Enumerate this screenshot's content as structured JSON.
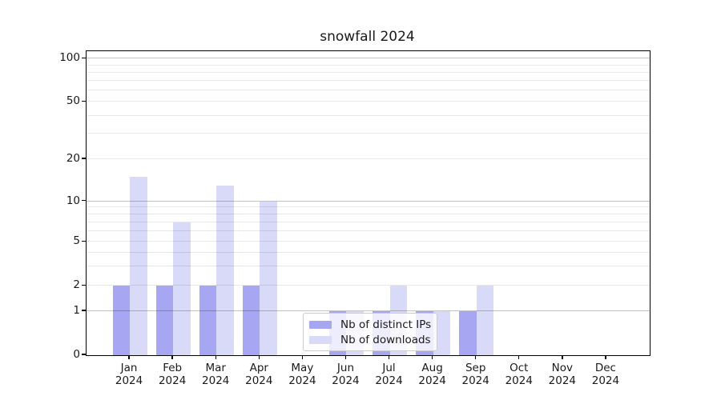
{
  "chart_data": {
    "type": "bar",
    "title": "snowfall 2024",
    "x_categories": [
      {
        "month": "Jan",
        "year": "2024"
      },
      {
        "month": "Feb",
        "year": "2024"
      },
      {
        "month": "Mar",
        "year": "2024"
      },
      {
        "month": "Apr",
        "year": "2024"
      },
      {
        "month": "May",
        "year": "2024"
      },
      {
        "month": "Jun",
        "year": "2024"
      },
      {
        "month": "Jul",
        "year": "2024"
      },
      {
        "month": "Aug",
        "year": "2024"
      },
      {
        "month": "Sep",
        "year": "2024"
      },
      {
        "month": "Oct",
        "year": "2024"
      },
      {
        "month": "Nov",
        "year": "2024"
      },
      {
        "month": "Dec",
        "year": "2024"
      }
    ],
    "series": [
      {
        "name": "Nb of distinct IPs",
        "color": "#a6a6f2",
        "values": [
          2,
          2,
          2,
          2,
          0,
          1,
          1,
          1,
          1,
          0,
          0,
          0
        ]
      },
      {
        "name": "Nb of downloads",
        "color": "#d9d9f8",
        "values": [
          15,
          7,
          13,
          10,
          0,
          1,
          2,
          1,
          2,
          0,
          0,
          0
        ]
      }
    ],
    "y_axis": {
      "ticks": [
        0,
        1,
        2,
        5,
        10,
        20,
        50,
        100
      ],
      "scale": "symlog-like (labeled 1-2-5 sequence)",
      "ylim": [
        0,
        113
      ],
      "major_gridlines": [
        1,
        10,
        100
      ],
      "minor_gridlines": [
        2,
        3,
        4,
        5,
        6,
        7,
        8,
        9,
        20,
        30,
        40,
        50,
        60,
        70,
        80,
        90
      ],
      "scale_anchors": [
        [
          0,
          0.0
        ],
        [
          1,
          0.1447
        ],
        [
          2,
          0.2279
        ],
        [
          5,
          0.3726
        ],
        [
          10,
          0.5061
        ],
        [
          20,
          0.6447
        ],
        [
          50,
          0.8332
        ],
        [
          100,
          0.9753
        ]
      ]
    },
    "legend": {
      "position": "lower-center-inside"
    },
    "grid": true
  },
  "colors": {
    "background": "#ffffff",
    "axis": "#000000",
    "text": "#1a1a1a",
    "bar_distinct_ips": "#a6a6f2",
    "bar_downloads": "#d9d9f8",
    "grid_major": "#c3c3c3",
    "grid_minor": "#e8e8e8",
    "legend_border": "#cccccc"
  }
}
